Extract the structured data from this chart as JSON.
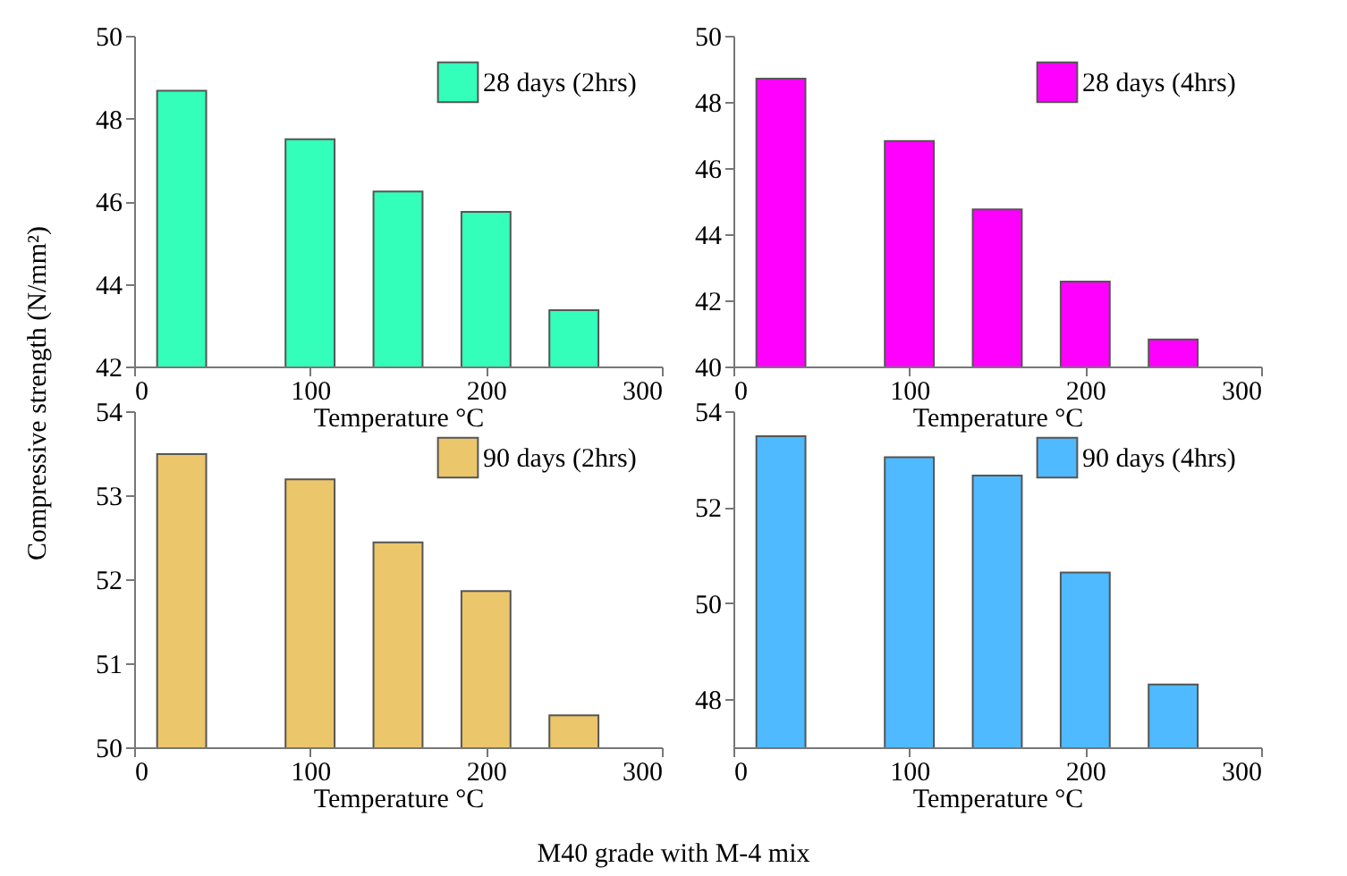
{
  "chart_data": [
    {
      "type": "bar",
      "ylabel": "Compressive strength (N/mm²)",
      "xlabel": "Temperature °C",
      "x": [
        27,
        100,
        150,
        200,
        250
      ],
      "series": [
        {
          "name": "28 days (2hrs)",
          "color": "#33ffbb",
          "values": [
            48.67,
            47.5,
            46.23,
            45.74,
            43.36
          ]
        }
      ],
      "xlim": [
        0,
        300
      ],
      "xticks": [
        0,
        100,
        200,
        300
      ],
      "ylim": [
        42,
        50
      ],
      "yticks": [
        42,
        44,
        46,
        48,
        50
      ],
      "legend": "top right"
    },
    {
      "type": "bar",
      "xlabel": "Temperature °C",
      "x": [
        27,
        100,
        150,
        200,
        250
      ],
      "series": [
        {
          "name": "28 days (4hrs)",
          "color": "#ff00ff",
          "values": [
            48.7,
            46.82,
            44.75,
            42.57,
            40.82
          ]
        }
      ],
      "xlim": [
        0,
        300
      ],
      "xticks": [
        0,
        100,
        200,
        300
      ],
      "ylim": [
        40,
        50
      ],
      "yticks": [
        40,
        42,
        44,
        46,
        48,
        50
      ],
      "legend": "top right"
    },
    {
      "type": "bar",
      "xlabel": "Temperature °C",
      "x": [
        27,
        100,
        150,
        200,
        250
      ],
      "series": [
        {
          "name": "90 days (2hrs)",
          "color": "#ebc66a",
          "values": [
            53.49,
            53.19,
            52.44,
            51.86,
            50.38
          ]
        }
      ],
      "xlim": [
        0,
        300
      ],
      "xticks": [
        0,
        100,
        200,
        300
      ],
      "ylim": [
        50,
        54
      ],
      "yticks": [
        50,
        51,
        52,
        53,
        54
      ],
      "legend": "top right",
      "annotations": [
        "M40 grade with M-4 mix"
      ]
    },
    {
      "type": "bar",
      "xlabel": "Temperature °C",
      "x": [
        27,
        100,
        150,
        200,
        250
      ],
      "series": [
        {
          "name": "90 days (4hrs)",
          "color": "#4fbaff",
          "values": [
            53.48,
            53.04,
            52.66,
            50.64,
            48.31
          ]
        }
      ],
      "xlim": [
        0,
        300
      ],
      "xticks": [
        0,
        100,
        200,
        300
      ],
      "ylim": [
        47,
        54
      ],
      "yticks": [
        48,
        50,
        52,
        54
      ],
      "legend": "top right"
    }
  ]
}
